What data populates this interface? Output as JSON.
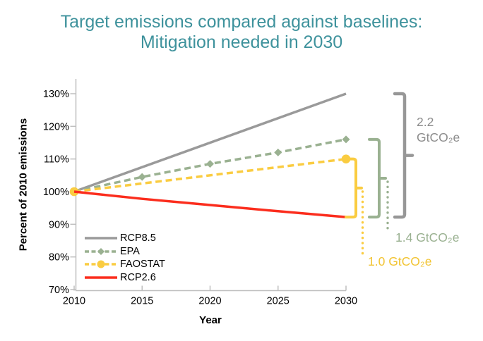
{
  "title": {
    "line1": "Target emissions compared against baselines:",
    "line2": "Mitigation needed in 2030",
    "color": "#3E929C"
  },
  "chart_data": {
    "type": "line",
    "title": "Target emissions compared against baselines: Mitigation needed in 2030",
    "xlabel": "Year",
    "ylabel": "Percent of 2010 emissions",
    "x_ticks": [
      "2010",
      "2015",
      "2020",
      "2025",
      "2030"
    ],
    "x_tick_values": [
      2010,
      2015,
      2020,
      2025,
      2030
    ],
    "y_ticks": [
      "70%",
      "80%",
      "90%",
      "100%",
      "110%",
      "120%",
      "130%"
    ],
    "y_tick_values": [
      70,
      80,
      90,
      100,
      110,
      120,
      130
    ],
    "xlim": [
      2010,
      2030
    ],
    "ylim": [
      70,
      130
    ],
    "grid": false,
    "legend_position": "lower-left-inside",
    "axis_color": "#BFBFBF",
    "series": [
      {
        "name": "RCP8.5",
        "color": "#9A9A9A",
        "style": "solid",
        "marker": "none",
        "x": [
          2010,
          2030
        ],
        "values": [
          100,
          130
        ]
      },
      {
        "name": "EPA",
        "color": "#9AB191",
        "style": "dashed",
        "marker": "diamond",
        "x": [
          2010,
          2015,
          2020,
          2025,
          2030
        ],
        "values": [
          100,
          104.5,
          108.5,
          112,
          116
        ],
        "marker_x": [
          2015,
          2020,
          2025,
          2030
        ]
      },
      {
        "name": "FAOSTAT",
        "color": "#FACC41",
        "style": "dashed",
        "marker": "circle",
        "x": [
          2010,
          2030
        ],
        "values": [
          100,
          110
        ],
        "marker_x": [
          2010,
          2030
        ]
      },
      {
        "name": "RCP2.6",
        "color": "#FB2D1D",
        "style": "solid",
        "marker": "none",
        "x": [
          2010,
          2015,
          2020,
          2025,
          2030
        ],
        "values": [
          100,
          97.8,
          95.9,
          94,
          92.2
        ]
      }
    ],
    "annotations": [
      {
        "id": "gray-bracket",
        "label": "2.2 GtCO₂e",
        "label_line1": "2.2",
        "label_line2": "GtCO₂e",
        "color": "#979797",
        "text_color": "#8C8C8C",
        "from_pct": 130,
        "to_pct": 92.2
      },
      {
        "id": "green-bracket",
        "label": "1.4 GtCO₂e",
        "color": "#9AB191",
        "text_color": "#9AB191",
        "from_pct": 116,
        "to_pct": 92.2
      },
      {
        "id": "yellow-bracket",
        "label": "1.0 GtCO₂e",
        "color": "#FACC41",
        "text_color": "#F2C433",
        "from_pct": 110,
        "to_pct": 92.2
      }
    ]
  }
}
